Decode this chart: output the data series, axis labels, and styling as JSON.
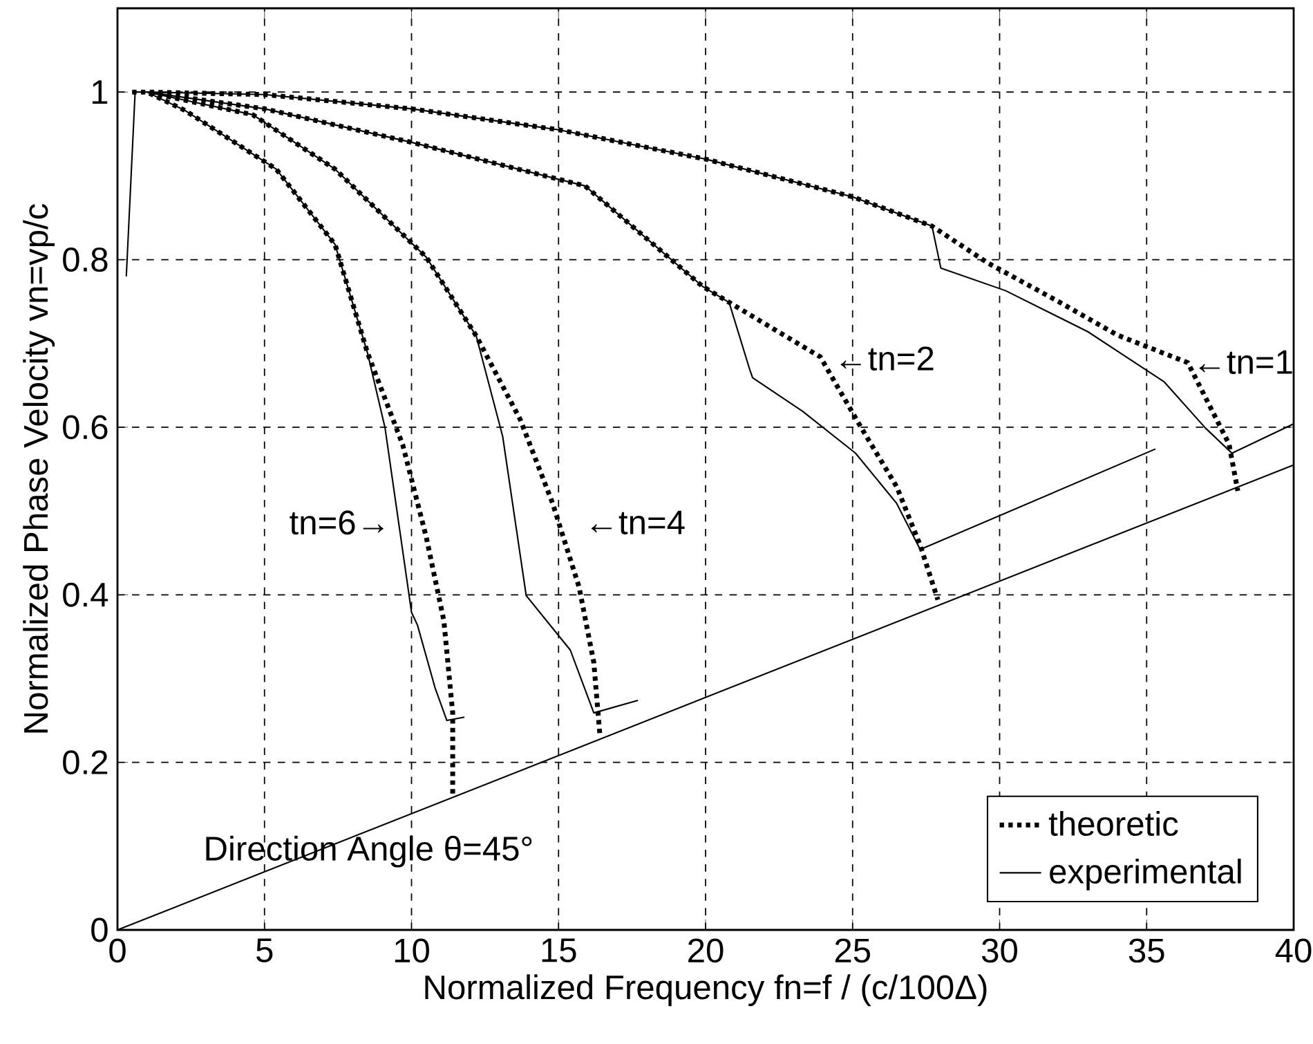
{
  "chart_data": {
    "type": "line",
    "xlabel": "Normalized Frequency fn=f / (c/100Δ)",
    "ylabel": "Normalized Phase Velocity vn=vp/c",
    "xlim": [
      0,
      40
    ],
    "ylim": [
      0,
      1.1
    ],
    "xticks": [
      0,
      5,
      10,
      15,
      20,
      25,
      30,
      35,
      40
    ],
    "yticks": [
      0,
      0.2,
      0.4,
      0.6,
      0.8,
      1
    ],
    "grid": true,
    "legend": "bottom right",
    "series": [
      {
        "name": "theoretic",
        "color": "#000000",
        "line_style": "dotted",
        "x": [
          0.5,
          1,
          5,
          10,
          15,
          20,
          25,
          27.7,
          29.6,
          32,
          34,
          36.4,
          37.8,
          38.1,
          null,
          0.5,
          1,
          5,
          10,
          15.9,
          19.9,
          23.9,
          25.3,
          26.5,
          27.3,
          27.9,
          null,
          0.5,
          1,
          4.6,
          7.4,
          10.5,
          12.2,
          13.7,
          14.8,
          15.7,
          16.2,
          16.4,
          null,
          0.5,
          1,
          2.3,
          5.4,
          7.4,
          8.5,
          9.7,
          10.5,
          11.1,
          11.4,
          11.4
        ],
        "values": [
          1.0,
          1.0,
          0.997,
          0.98,
          0.955,
          0.92,
          0.875,
          0.84,
          0.796,
          0.75,
          0.71,
          0.677,
          0.58,
          0.524,
          null,
          1.0,
          1.0,
          0.98,
          0.94,
          0.888,
          0.768,
          0.684,
          0.599,
          0.529,
          0.459,
          0.394,
          null,
          1.0,
          1.0,
          0.973,
          0.908,
          0.803,
          0.709,
          0.609,
          0.509,
          0.409,
          0.319,
          0.235,
          null,
          1.0,
          1.0,
          0.978,
          0.908,
          0.818,
          0.689,
          0.579,
          0.469,
          0.369,
          0.259,
          0.16
        ]
      },
      {
        "name": "experimental",
        "color": "#000000",
        "line_style": "solid",
        "x": [
          0.3,
          0.6,
          1,
          5,
          10,
          15,
          20,
          25,
          27.7,
          28.0,
          30.2,
          33.0,
          35.6,
          37.0,
          37.9,
          40,
          null,
          1,
          5,
          10,
          15.9,
          19.9,
          20.8,
          21.5,
          21.6,
          23.3,
          25.1,
          26.5,
          27.3,
          35.3,
          null,
          1,
          4.6,
          7.4,
          10.5,
          12.2,
          12.5,
          13.1,
          13.9,
          15.4,
          16.2,
          17.7,
          null,
          1,
          2.3,
          5.4,
          7.4,
          8.5,
          9.1,
          10.0,
          10.2,
          10.8,
          11.2,
          11.8
        ],
        "values": [
          0.78,
          1.0,
          1.0,
          0.997,
          0.98,
          0.955,
          0.92,
          0.875,
          0.84,
          0.79,
          0.763,
          0.714,
          0.654,
          0.599,
          0.569,
          0.604,
          null,
          1.0,
          0.98,
          0.94,
          0.888,
          0.768,
          0.749,
          0.669,
          0.659,
          0.619,
          0.569,
          0.509,
          0.454,
          0.574,
          null,
          1.0,
          0.973,
          0.908,
          0.803,
          0.709,
          0.669,
          0.589,
          0.399,
          0.334,
          0.259,
          0.274,
          null,
          1.0,
          0.978,
          0.908,
          0.818,
          0.689,
          0.599,
          0.379,
          0.364,
          0.289,
          0.25,
          0.254
        ]
      },
      {
        "color": "#000000",
        "line_style": "solid",
        "x": [
          0,
          40
        ],
        "values": [
          0,
          0.555
        ]
      }
    ],
    "annotations": [
      "←tn=1",
      "←tn=2",
      "←tn=4",
      "tn=6→",
      "Direction Angle θ=45°"
    ]
  }
}
